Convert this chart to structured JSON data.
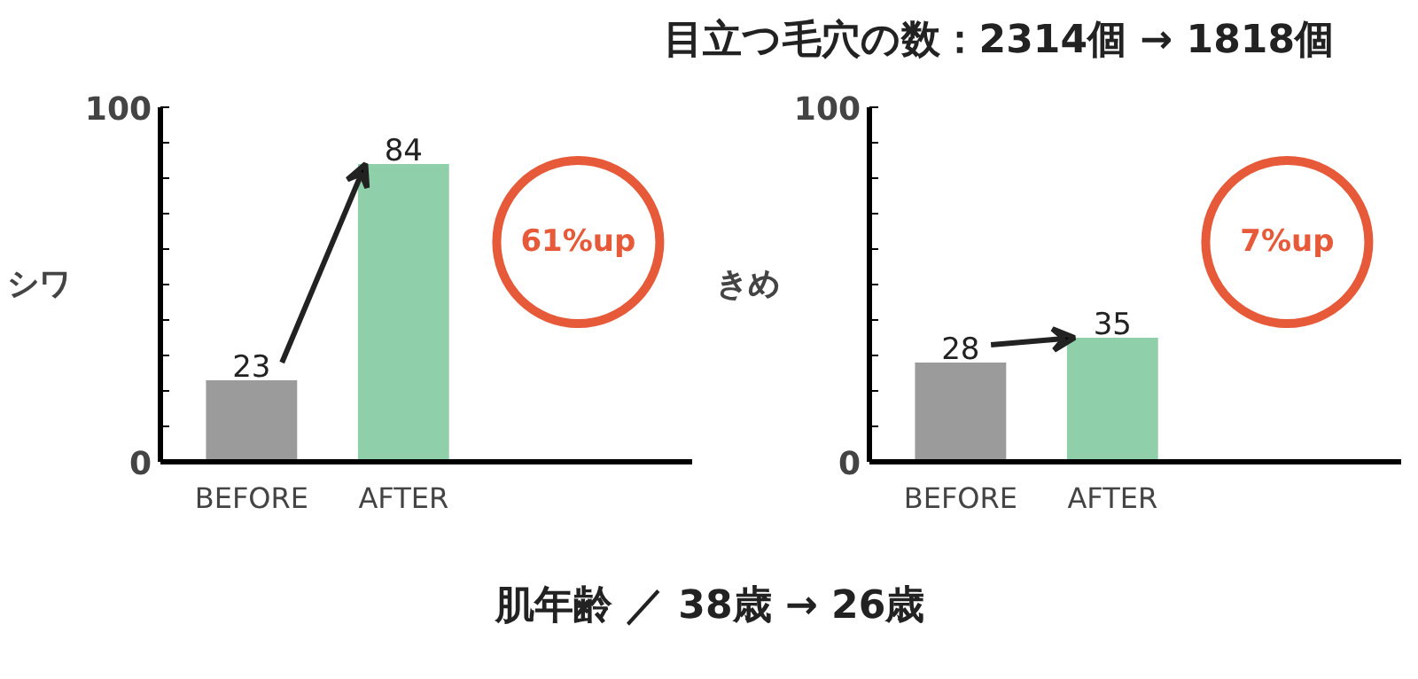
{
  "chart_data": [
    {
      "type": "other",
      "annotations": [
        "目立つ毛穴の数：2314個 → 1818個"
      ]
    },
    {
      "type": "bar",
      "ylabel": "シワ",
      "categories": [
        "BEFORE",
        "AFTER"
      ],
      "values": [
        23,
        84
      ],
      "colors": [
        "#9b9b9b",
        "#8fd0ab"
      ],
      "ylim": [
        0,
        100
      ],
      "yticks": [
        0,
        {
          "value": 10,
          "label": null
        },
        {
          "value": 20,
          "label": null
        },
        {
          "value": 30,
          "label": null
        },
        {
          "value": 40,
          "label": null
        },
        {
          "value": 50,
          "label": null
        },
        {
          "value": 60,
          "label": null
        },
        {
          "value": 70,
          "label": null
        },
        {
          "value": 80,
          "label": null
        },
        {
          "value": 90,
          "label": null
        },
        100
      ],
      "data_labels": true,
      "grid": false,
      "annotations": [
        "61%up"
      ]
    },
    {
      "type": "bar",
      "ylabel": "きめ",
      "categories": [
        "BEFORE",
        "AFTER"
      ],
      "values": [
        28,
        35
      ],
      "colors": [
        "#9b9b9b",
        "#8fd0ab"
      ],
      "ylim": [
        0,
        100
      ],
      "yticks": [
        0,
        {
          "value": 10,
          "label": null
        },
        {
          "value": 20,
          "label": null
        },
        {
          "value": 30,
          "label": null
        },
        {
          "value": 40,
          "label": null
        },
        {
          "value": 50,
          "label": null
        },
        {
          "value": 60,
          "label": null
        },
        {
          "value": 70,
          "label": null
        },
        {
          "value": 80,
          "label": null
        },
        {
          "value": 90,
          "label": null
        },
        100
      ],
      "data_labels": true,
      "grid": false,
      "annotations": [
        "7%up"
      ]
    },
    {
      "type": "other",
      "annotations": [
        "肌年齢 ／ 38歳 → 26歳"
      ]
    }
  ]
}
